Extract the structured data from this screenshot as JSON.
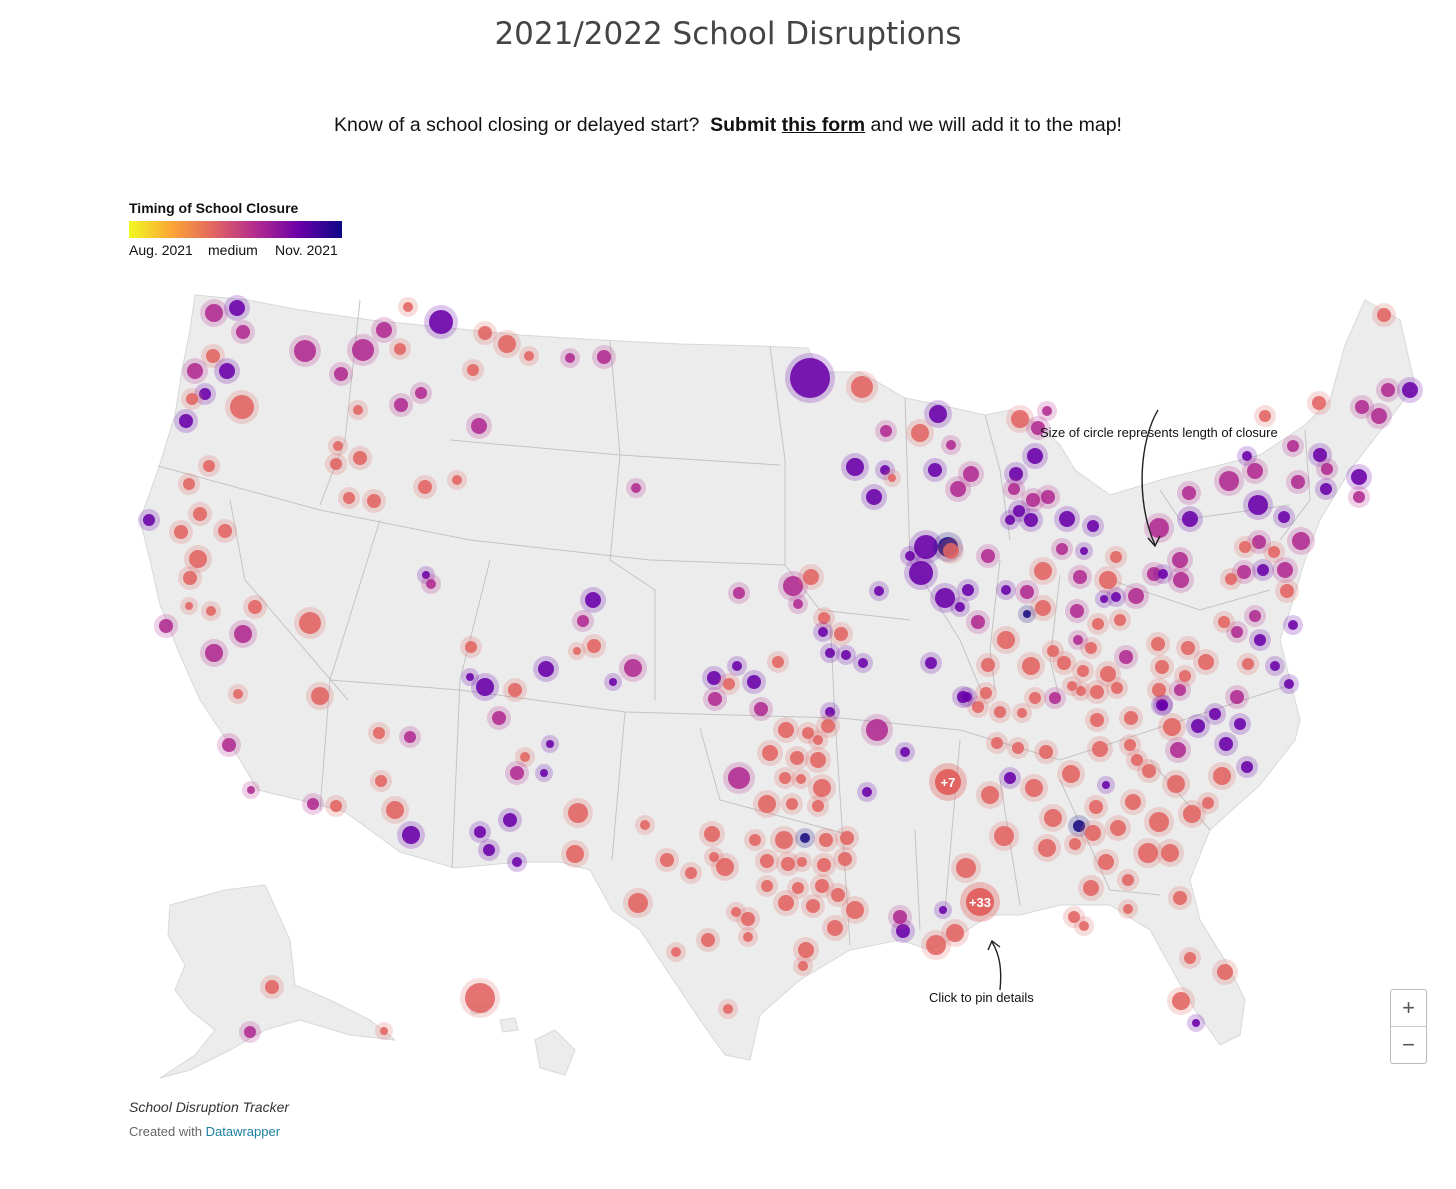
{
  "header": {
    "title": "2021/2022 School Disruptions",
    "intro_text": "Know of a school closing or delayed start?",
    "intro_submit": "Submit",
    "intro_link": "this form",
    "intro_tail": "and we will add it to the map!"
  },
  "legend": {
    "title": "Timing of School Closure",
    "label_start": "Aug. 2021",
    "label_mid": "medium",
    "label_end": "Nov. 2021",
    "gradient_colors": [
      "#f0f921",
      "#fca636",
      "#e16462",
      "#b12a90",
      "#6a00a8",
      "#0d0887"
    ]
  },
  "map": {
    "region": "United States",
    "colors": {
      "land": "#ececec",
      "borders": "#c4c4c4",
      "early": "#e16462",
      "mid": "#b12a90",
      "late": "#6a00a8",
      "latest": "#1b0c81"
    },
    "annotations": {
      "circle_size": "Size of circle represents length of closure",
      "click_pin": "Click to pin details"
    },
    "clusters": [
      "+7",
      "+33"
    ]
  },
  "controls": {
    "zoom_in": "+",
    "zoom_out": "−"
  },
  "footer": {
    "source": "School Disruption Tracker",
    "created_with": "Created with",
    "tool": "Datawrapper"
  }
}
